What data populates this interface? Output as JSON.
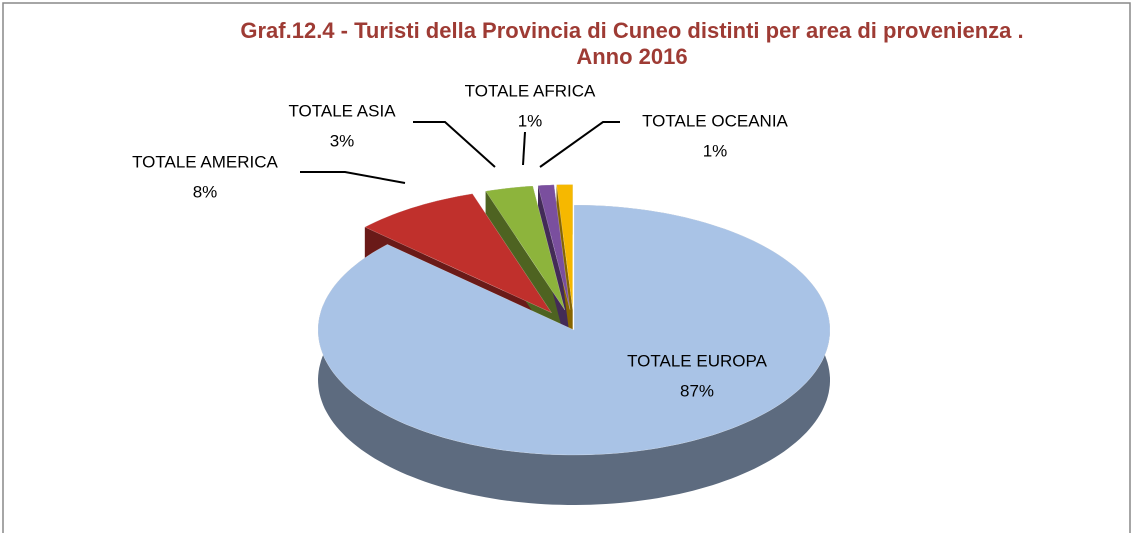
{
  "chart_data": {
    "type": "pie",
    "title": "Graf.12.4 - Turisti della Provincia di Cuneo distinti per area di provenienza . Anno 2016",
    "categories": [
      "TOTALE EUROPA",
      "TOTALE AMERICA",
      "TOTALE ASIA",
      "TOTALE AFRICA",
      "TOTALE OCEANIA"
    ],
    "values": [
      87,
      8,
      3,
      1,
      1
    ],
    "value_labels": [
      "87%",
      "8%",
      "3%",
      "1%",
      "1%"
    ],
    "colors": [
      "#a9c3e6",
      "#c0302c",
      "#8db43c",
      "#7a4f9e",
      "#f6b800"
    ]
  }
}
